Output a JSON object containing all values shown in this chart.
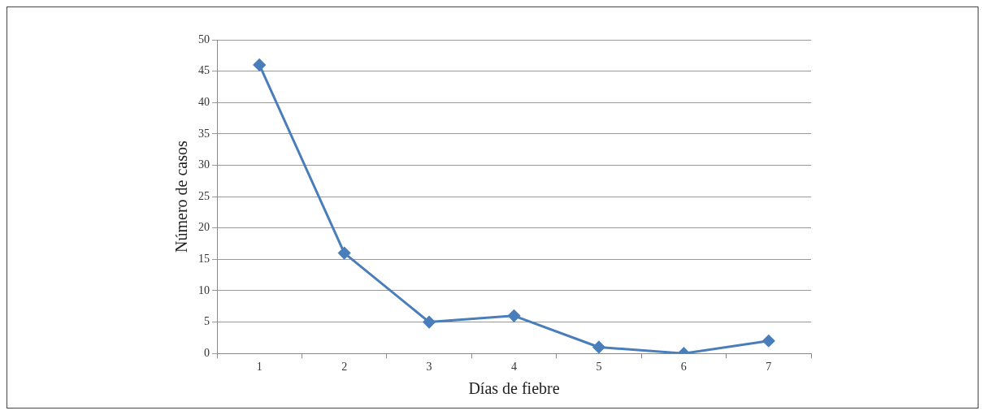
{
  "chart_data": {
    "type": "line",
    "xlabel": "Días de fiebre",
    "ylabel": "Número de casos",
    "categories": [
      "1",
      "2",
      "3",
      "4",
      "5",
      "6",
      "7"
    ],
    "series": [
      {
        "color": "#4a7ebb",
        "values": [
          46,
          16,
          5,
          6,
          1,
          0,
          2
        ]
      }
    ],
    "ylim": [
      0,
      50
    ],
    "yticks": [
      0,
      5,
      10,
      15,
      20,
      25,
      30,
      35,
      40,
      45,
      50
    ],
    "grid": "y",
    "legend": false,
    "marker": "diamond",
    "line_style": "solid"
  }
}
